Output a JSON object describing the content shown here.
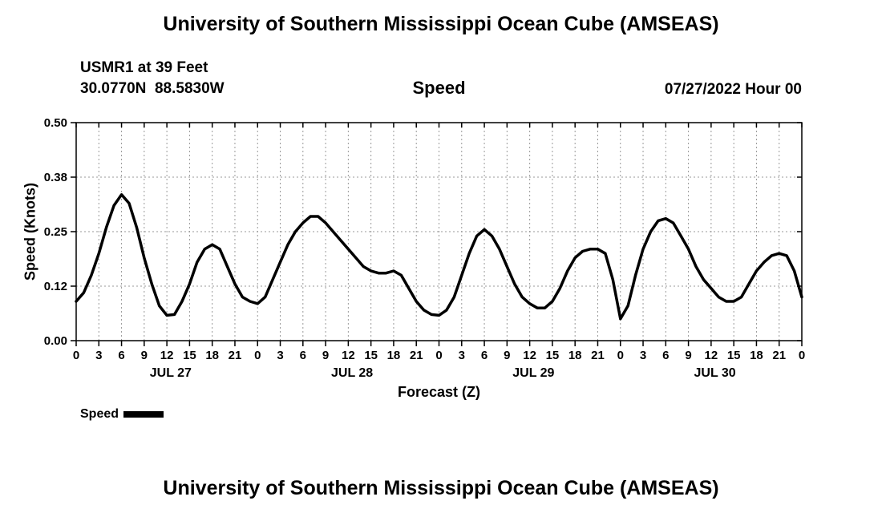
{
  "titles": {
    "top": "University of Southern Mississippi Ocean Cube (AMSEAS)",
    "bottom": "University of Southern Mississippi Ocean Cube (AMSEAS)"
  },
  "header": {
    "station": "USMR1 at 39 Feet",
    "coordinates": "30.0770N  88.5830W",
    "plot_title": "Speed",
    "datetime": "07/27/2022 Hour 00"
  },
  "legend": {
    "label": "Speed"
  },
  "colors": {
    "line": "#000000",
    "grid": "#999999",
    "frame": "#000000",
    "text": "#000000"
  },
  "chart_data": {
    "type": "line",
    "title": "Speed",
    "xlabel": "Forecast (Z)",
    "ylabel": "Speed (Knots)",
    "ylim": [
      0.0,
      0.5
    ],
    "yticks": [
      0,
      0.125,
      0.25,
      0.375,
      0.5
    ],
    "ytick_labels": [
      "0.00",
      "0.12",
      "0.25",
      "0.38",
      "0.50"
    ],
    "xlim": [
      0,
      96
    ],
    "xtick_interval": 3,
    "xtick_labels": [
      "0",
      "3",
      "6",
      "9",
      "12",
      "15",
      "18",
      "21",
      "0",
      "3",
      "6",
      "9",
      "12",
      "15",
      "18",
      "21",
      "0",
      "3",
      "6",
      "9",
      "12",
      "15",
      "18",
      "21",
      "0",
      "3",
      "6",
      "9",
      "12",
      "15",
      "18",
      "21",
      "0"
    ],
    "day_labels": [
      {
        "label": "JUL 27",
        "x": 12.5
      },
      {
        "label": "JUL 28",
        "x": 36.5
      },
      {
        "label": "JUL 29",
        "x": 60.5
      },
      {
        "label": "JUL 30",
        "x": 84.5
      }
    ],
    "grid": true,
    "legend_position": "bottom-left",
    "series": [
      {
        "name": "Speed",
        "x": [
          0,
          1,
          2,
          3,
          4,
          5,
          6,
          7,
          8,
          9,
          10,
          11,
          12,
          13,
          14,
          15,
          16,
          17,
          18,
          19,
          20,
          21,
          22,
          23,
          24,
          25,
          26,
          27,
          28,
          29,
          30,
          31,
          32,
          33,
          34,
          35,
          36,
          37,
          38,
          39,
          40,
          41,
          42,
          43,
          44,
          45,
          46,
          47,
          48,
          49,
          50,
          51,
          52,
          53,
          54,
          55,
          56,
          57,
          58,
          59,
          60,
          61,
          62,
          63,
          64,
          65,
          66,
          67,
          68,
          69,
          70,
          71,
          72,
          73,
          74,
          75,
          76,
          77,
          78,
          79,
          80,
          81,
          82,
          83,
          84,
          85,
          86,
          87,
          88,
          89,
          90,
          91,
          92,
          93,
          94,
          95,
          96
        ],
        "y": [
          0.09,
          0.11,
          0.15,
          0.2,
          0.26,
          0.31,
          0.335,
          0.315,
          0.26,
          0.19,
          0.13,
          0.08,
          0.058,
          0.06,
          0.09,
          0.13,
          0.18,
          0.21,
          0.22,
          0.21,
          0.17,
          0.13,
          0.1,
          0.09,
          0.085,
          0.1,
          0.14,
          0.18,
          0.22,
          0.25,
          0.27,
          0.285,
          0.285,
          0.27,
          0.25,
          0.23,
          0.21,
          0.19,
          0.17,
          0.16,
          0.155,
          0.155,
          0.16,
          0.15,
          0.12,
          0.09,
          0.07,
          0.06,
          0.058,
          0.07,
          0.1,
          0.15,
          0.2,
          0.24,
          0.255,
          0.24,
          0.21,
          0.17,
          0.13,
          0.1,
          0.085,
          0.075,
          0.075,
          0.09,
          0.12,
          0.16,
          0.19,
          0.205,
          0.21,
          0.21,
          0.2,
          0.14,
          0.05,
          0.08,
          0.15,
          0.21,
          0.25,
          0.275,
          0.28,
          0.27,
          0.24,
          0.21,
          0.17,
          0.14,
          0.12,
          0.1,
          0.09,
          0.09,
          0.1,
          0.13,
          0.16,
          0.18,
          0.195,
          0.2,
          0.195,
          0.16,
          0.1
        ]
      }
    ]
  }
}
